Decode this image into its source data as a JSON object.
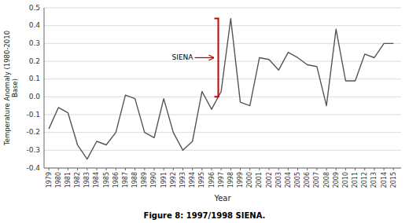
{
  "chart_data": {
    "type": "line",
    "caption": "Figure 8: 1997/1998 SIENA.",
    "xlabel": "Year",
    "ylabel": "Temperature Anomaly (1980-2010\nBase)",
    "x": [
      1979,
      1980,
      1981,
      1982,
      1983,
      1984,
      1985,
      1986,
      1987,
      1988,
      1989,
      1990,
      1991,
      1992,
      1993,
      1994,
      1995,
      1996,
      1997,
      1998,
      1999,
      2000,
      2001,
      2002,
      2003,
      2004,
      2005,
      2006,
      2007,
      2008,
      2009,
      2010,
      2011,
      2012,
      2013,
      2014,
      2015
    ],
    "values": [
      -0.18,
      -0.06,
      -0.09,
      -0.27,
      -0.35,
      -0.25,
      -0.27,
      -0.2,
      0.01,
      -0.01,
      -0.2,
      -0.23,
      -0.01,
      -0.2,
      -0.3,
      -0.25,
      0.03,
      -0.07,
      0.03,
      0.44,
      -0.03,
      -0.05,
      0.22,
      0.21,
      0.15,
      0.25,
      0.22,
      0.18,
      0.17,
      -0.05,
      0.38,
      0.09,
      0.09,
      0.24,
      0.22,
      0.3,
      0.3
    ],
    "color": "#555555",
    "xlim": [
      1978.5,
      2015.8
    ],
    "xticks": [
      1979,
      1980,
      1981,
      1982,
      1983,
      1984,
      1985,
      1986,
      1987,
      1988,
      1989,
      1990,
      1991,
      1992,
      1993,
      1994,
      1995,
      1996,
      1997,
      1998,
      1999,
      2000,
      2001,
      2002,
      2003,
      2004,
      2005,
      2006,
      2007,
      2008,
      2009,
      2010,
      2011,
      2012,
      2013,
      2014,
      2015
    ],
    "ylim": [
      -0.4,
      0.5
    ],
    "yticks": [
      -0.4,
      -0.3,
      -0.2,
      -0.1,
      {
        "value": 0.0,
        "label": "0.0"
      },
      0.1,
      0.2,
      0.3,
      0.4,
      0.5
    ],
    "grid": true,
    "annotations": [
      {
        "text": "SIENA",
        "x": 1996.7,
        "y_range": [
          0.0,
          0.44
        ],
        "color": "#cc0000"
      }
    ]
  }
}
